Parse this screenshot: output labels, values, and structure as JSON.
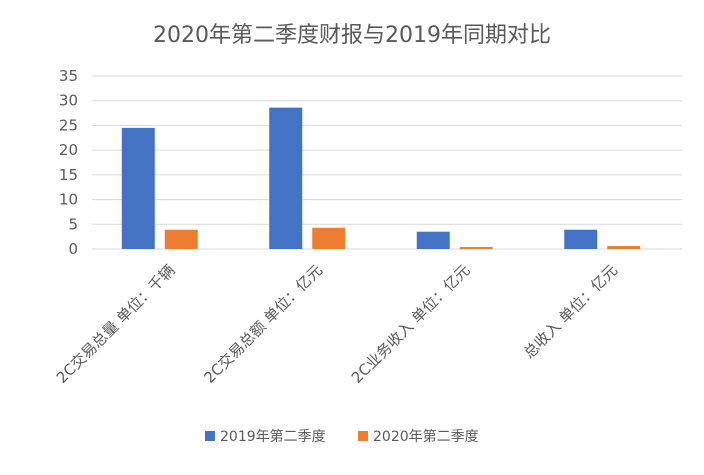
{
  "chart_data": {
    "type": "bar",
    "title": "2020年第二季度财报与2019年同期对比",
    "categories": [
      "2C交易总量 单位：千辆",
      "2C交易总额 单位：亿元",
      "2C业务收入 单位：亿元",
      "总收入 单位：亿元"
    ],
    "series": [
      {
        "name": "2019年第二季度",
        "color": "#4472C4",
        "values": [
          24.5,
          28.6,
          3.5,
          3.9
        ]
      },
      {
        "name": "2020年第二季度",
        "color": "#ED7D31",
        "values": [
          3.9,
          4.3,
          0.4,
          0.6
        ]
      }
    ],
    "ylim": [
      0,
      35
    ],
    "yticks": [
      "0",
      "5",
      "10",
      "15",
      "20",
      "25",
      "30",
      "35"
    ],
    "grid": true,
    "legend_position": "bottom"
  }
}
